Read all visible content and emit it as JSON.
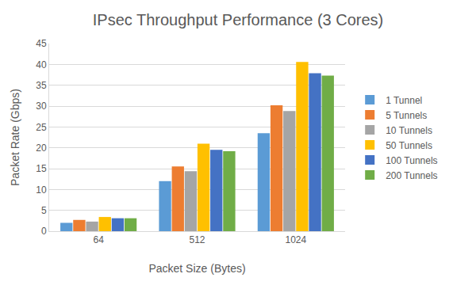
{
  "chart_data": {
    "type": "bar",
    "title": "IPsec Throughput Performance (3 Cores)",
    "x_label": "Packet Size (Bytes)",
    "y_label": "Packet Rate (Gbps)",
    "categories": [
      "64",
      "512",
      "1024"
    ],
    "series": [
      {
        "name": "1 Tunnel",
        "color": "#5b9bd5",
        "values": [
          2.0,
          12.0,
          23.5
        ]
      },
      {
        "name": "5 Tunnels",
        "color": "#ed7d31",
        "values": [
          2.7,
          15.5,
          30.2
        ]
      },
      {
        "name": "10 Tunnels",
        "color": "#a5a5a5",
        "values": [
          2.3,
          14.4,
          28.8
        ]
      },
      {
        "name": "50 Tunnels",
        "color": "#ffc000",
        "values": [
          3.4,
          21.0,
          40.6
        ]
      },
      {
        "name": "100 Tunnels",
        "color": "#4472c4",
        "values": [
          3.1,
          19.5,
          37.9
        ]
      },
      {
        "name": "200 Tunnels",
        "color": "#70ad47",
        "values": [
          3.1,
          19.2,
          37.3
        ]
      }
    ],
    "ylim": [
      0,
      45
    ],
    "yticks": [
      0,
      5,
      10,
      15,
      20,
      25,
      30,
      35,
      40,
      45
    ],
    "grid": true,
    "legend": "right"
  }
}
